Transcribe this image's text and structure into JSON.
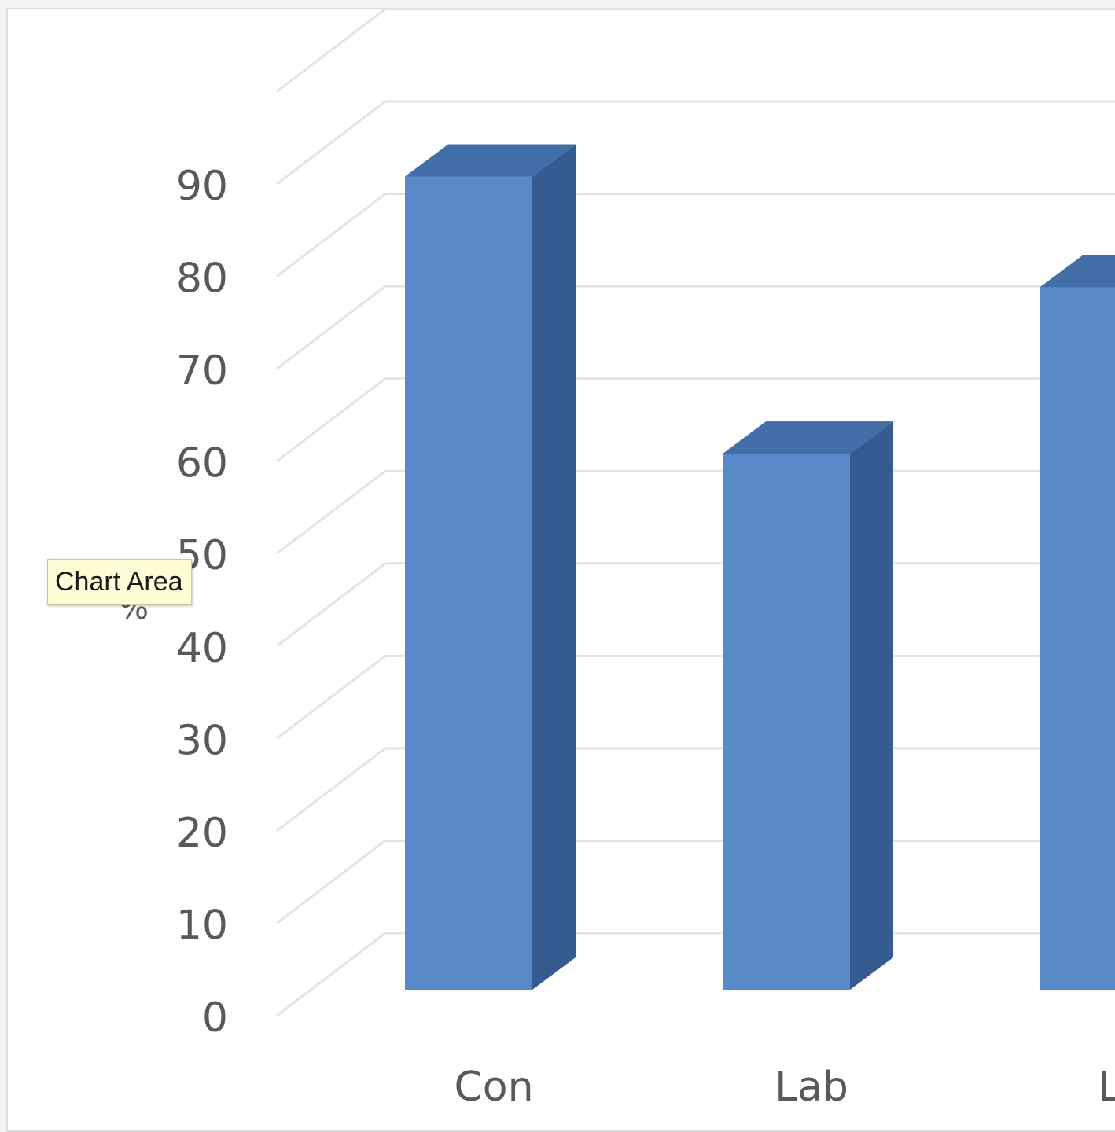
{
  "tooltip": {
    "text": "Chart Area"
  },
  "colors": {
    "bar_front": "#5889c9",
    "bar_side": "#365b90",
    "bar_top": "#436fa8",
    "gridline": "#e3e3e3",
    "text": "#595959"
  },
  "chart_data": {
    "type": "bar",
    "style": "3d-column",
    "title": "",
    "xlabel": "",
    "ylabel": "%",
    "ylim": [
      0,
      90
    ],
    "yticks": [
      "0",
      "10",
      "20",
      "30",
      "40",
      "50",
      "60",
      "70",
      "80",
      "90"
    ],
    "categories": [
      "Con",
      "Lab",
      "Lib"
    ],
    "values": [
      88,
      58,
      76
    ],
    "grid": true,
    "legend": "none"
  }
}
